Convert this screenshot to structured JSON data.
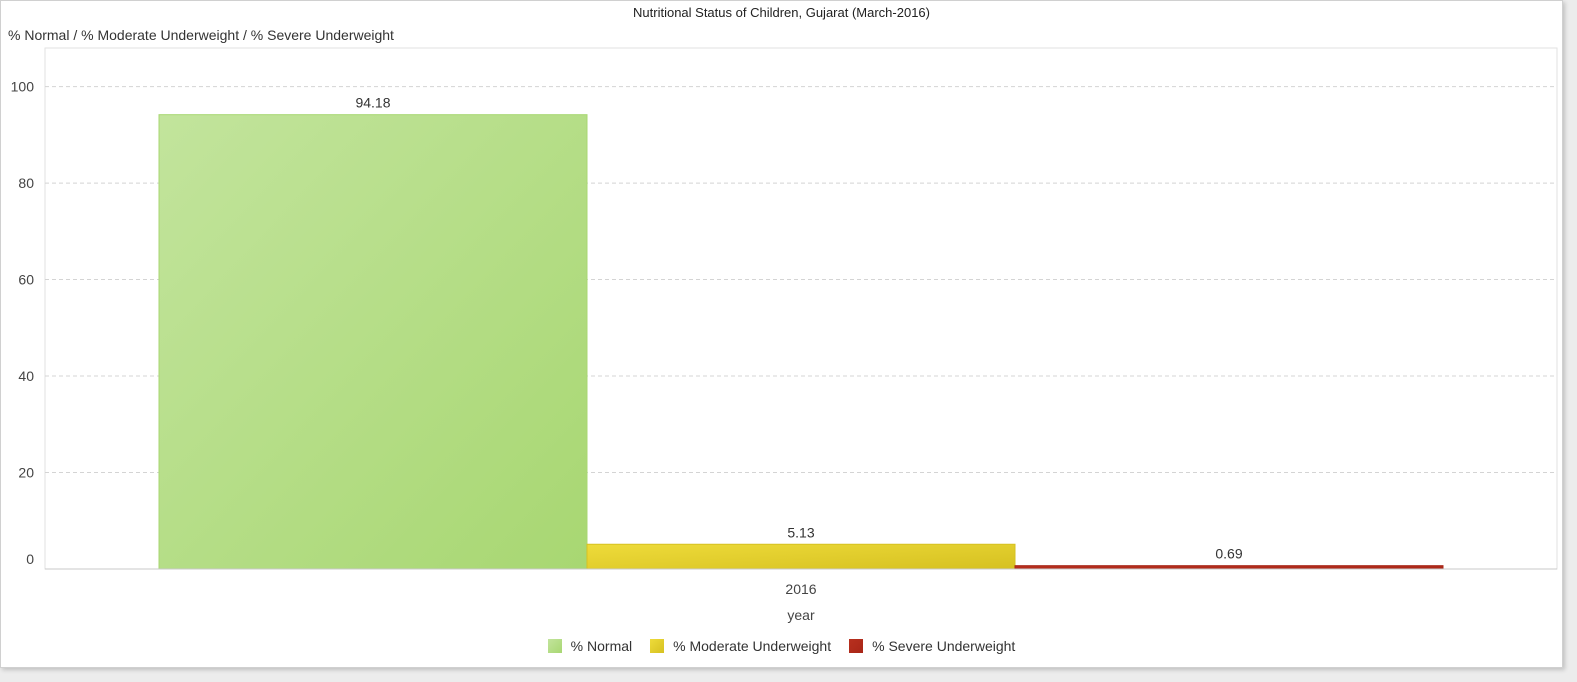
{
  "chart_data": {
    "type": "bar",
    "title": "Nutritional Status of Children, Gujarat (March-2016)",
    "ylabel": "% Normal / % Moderate Underweight / % Severe Underweight",
    "xlabel": "year",
    "categories": [
      "2016"
    ],
    "ylim": [
      0,
      108
    ],
    "yticks": [
      0,
      20,
      40,
      60,
      80,
      100
    ],
    "grid": true,
    "legend_position": "bottom",
    "series": [
      {
        "name": "% Normal",
        "values": [
          94.18
        ],
        "value_labels": [
          "94.18"
        ],
        "color": "#a8d772",
        "color_light": "#c2e49c"
      },
      {
        "name": "% Moderate Underweight",
        "values": [
          5.13
        ],
        "value_labels": [
          "5.13"
        ],
        "color": "#d6c121",
        "color_light": "#eedb3a"
      },
      {
        "name": "% Severe Underweight",
        "values": [
          0.69
        ],
        "value_labels": [
          "0.69"
        ],
        "color": "#a82617",
        "color_light": "#b8301f"
      }
    ]
  }
}
